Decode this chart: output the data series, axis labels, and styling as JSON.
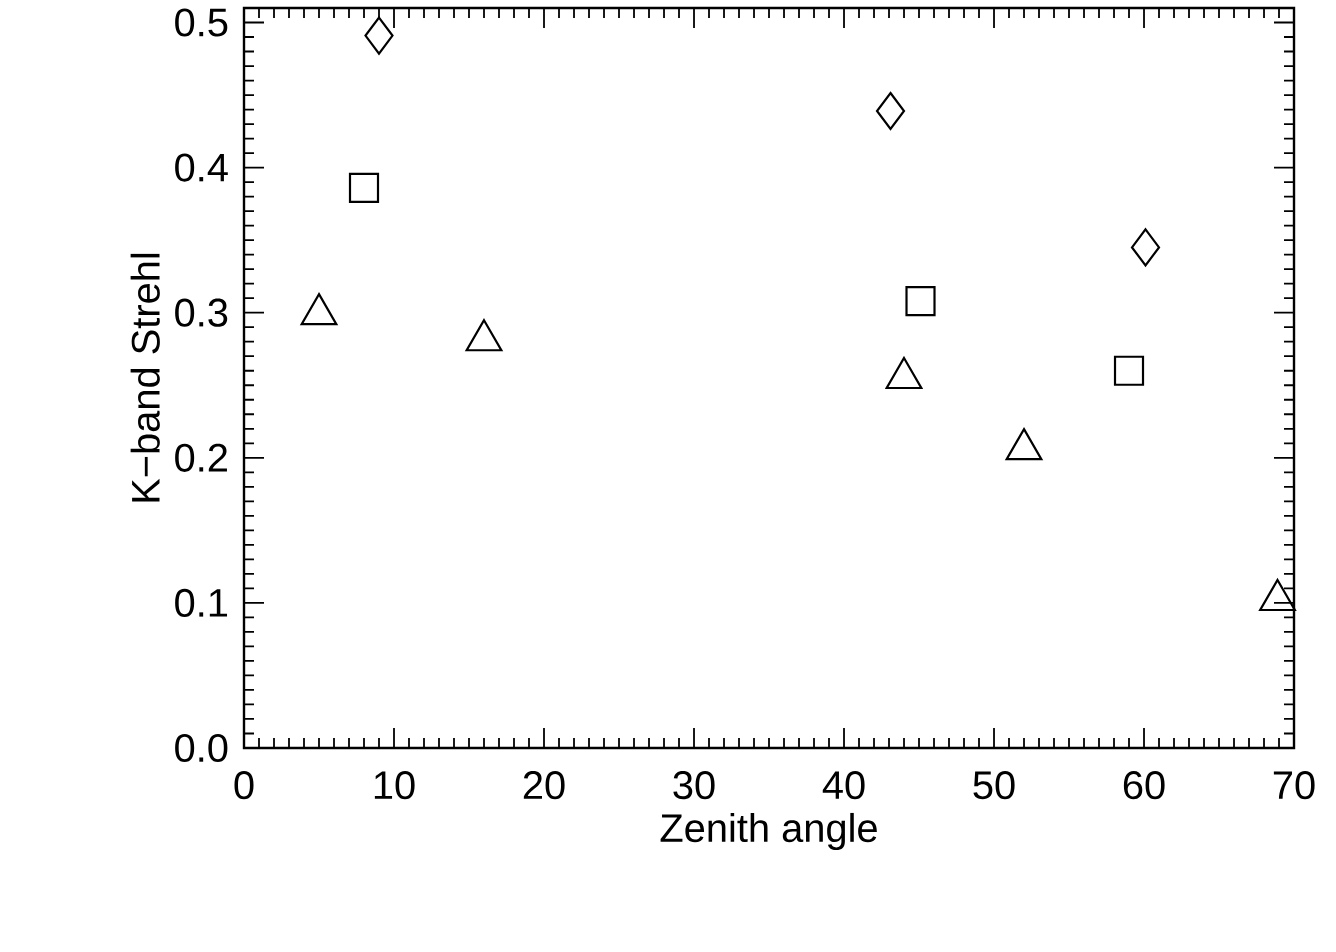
{
  "chart_data": {
    "type": "scatter",
    "xlabel": "Zenith angle",
    "ylabel": "K−band Strehl",
    "xlim": [
      0,
      70
    ],
    "ylim": [
      0,
      0.51
    ],
    "xticks": [
      0,
      10,
      20,
      30,
      40,
      50,
      60,
      70
    ],
    "yticks": [
      {
        "value": 0,
        "label": "0.0"
      },
      0.1,
      0.2,
      0.3,
      0.4,
      0.5
    ],
    "series": [
      {
        "color": "#000000",
        "marker": "diamond",
        "x": [
          9.0,
          43.1,
          60.1
        ],
        "values": [
          0.491,
          0.439,
          0.345
        ]
      },
      {
        "color": "#000000",
        "marker": "square",
        "x": [
          8.0,
          45.1,
          59.0
        ],
        "values": [
          0.386,
          0.308,
          0.26
        ]
      },
      {
        "color": "#000000",
        "marker": "triangle",
        "x": [
          5.0,
          16.0,
          44.0,
          52.0,
          68.9
        ],
        "values": [
          0.299,
          0.281,
          0.255,
          0.206,
          0.102
        ]
      }
    ]
  }
}
